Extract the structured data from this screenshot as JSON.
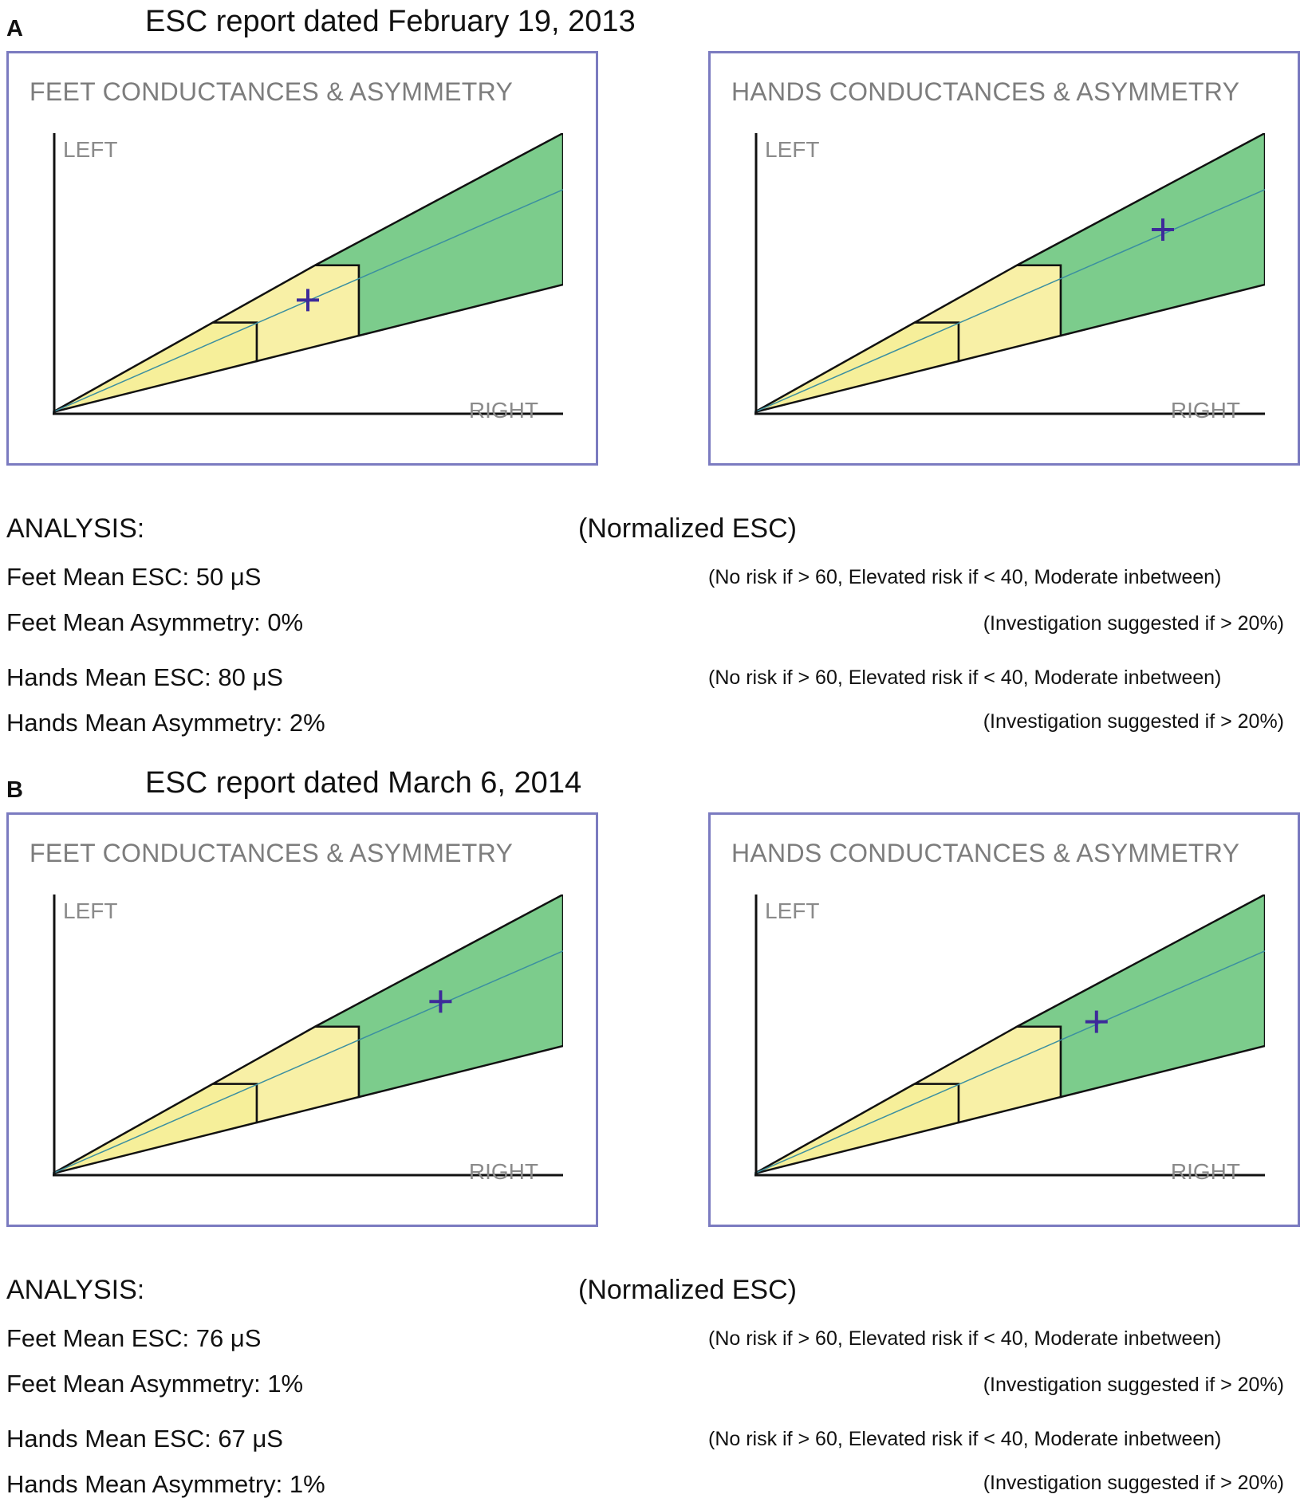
{
  "sections": [
    {
      "letter": "A",
      "title": "ESC report dated February 19, 2013",
      "charts": [
        {
          "title": "FEET CONDUCTANCES & ASYMMETRY",
          "left_label": "LEFT",
          "right_label": "RIGHT"
        },
        {
          "title": "HANDS CONDUCTANCES & ASYMMETRY",
          "left_label": "LEFT",
          "right_label": "RIGHT"
        }
      ],
      "analysis": {
        "heading": "ANALYSIS:",
        "normalized": "(Normalized ESC)",
        "feet_esc": "Feet Mean ESC: 50 μS",
        "feet_esc_note": "(No risk if > 60, Elevated risk if < 40, Moderate inbetween)",
        "feet_asym": "Feet Mean Asymmetry: 0%",
        "feet_asym_note": "(Investigation suggested if > 20%)",
        "hands_esc": "Hands Mean ESC: 80 μS",
        "hands_esc_note": "(No risk if > 60, Elevated risk if < 40, Moderate inbetween)",
        "hands_asym": "Hands Mean Asymmetry: 2%",
        "hands_asym_note": "(Investigation suggested if > 20%)"
      }
    },
    {
      "letter": "B",
      "title": "ESC report dated March 6, 2014",
      "charts": [
        {
          "title": "FEET CONDUCTANCES & ASYMMETRY",
          "left_label": "LEFT",
          "right_label": "RIGHT"
        },
        {
          "title": "HANDS CONDUCTANCES & ASYMMETRY",
          "left_label": "LEFT",
          "right_label": "RIGHT"
        }
      ],
      "analysis": {
        "heading": "ANALYSIS:",
        "normalized": "(Normalized ESC)",
        "feet_esc": "Feet Mean ESC: 76 μS",
        "feet_esc_note": "(No risk if > 60, Elevated risk if < 40, Moderate inbetween)",
        "feet_asym": "Feet Mean Asymmetry: 1%",
        "feet_asym_note": "(Investigation suggested if > 20%)",
        "hands_esc": "Hands Mean ESC: 67 μS",
        "hands_esc_note": "(No risk if > 60, Elevated risk if < 40, Moderate inbetween)",
        "hands_asym": "Hands Mean Asymmetry: 1%",
        "hands_asym_note": "(Investigation suggested if > 20%)"
      }
    }
  ],
  "colors": {
    "risk_zone": "#f6ef9a",
    "moderate_zone": "#f8f0a6",
    "normal_zone": "#7ccc8c",
    "marker": "#3d2a9a",
    "panel_border": "#7b7bc0",
    "axis_label": "#8a8a8a"
  },
  "chart_data": [
    {
      "type": "scatter",
      "title": "FEET CONDUCTANCES & ASYMMETRY",
      "report": "A",
      "mean_esc_uS": 50,
      "asymmetry_pct": 0,
      "zones": [
        "elevated risk (<40)",
        "moderate (40-60)",
        "no risk (>60)"
      ]
    },
    {
      "type": "scatter",
      "title": "HANDS CONDUCTANCES & ASYMMETRY",
      "report": "A",
      "mean_esc_uS": 80,
      "asymmetry_pct": 2,
      "zones": [
        "elevated risk (<40)",
        "moderate (40-60)",
        "no risk (>60)"
      ]
    },
    {
      "type": "scatter",
      "title": "FEET CONDUCTANCES & ASYMMETRY",
      "report": "B",
      "mean_esc_uS": 76,
      "asymmetry_pct": 1,
      "zones": [
        "elevated risk (<40)",
        "moderate (40-60)",
        "no risk (>60)"
      ]
    },
    {
      "type": "scatter",
      "title": "HANDS CONDUCTANCES & ASYMMETRY",
      "report": "B",
      "mean_esc_uS": 67,
      "asymmetry_pct": 1,
      "zones": [
        "elevated risk (<40)",
        "moderate (40-60)",
        "no risk (>60)"
      ]
    }
  ]
}
